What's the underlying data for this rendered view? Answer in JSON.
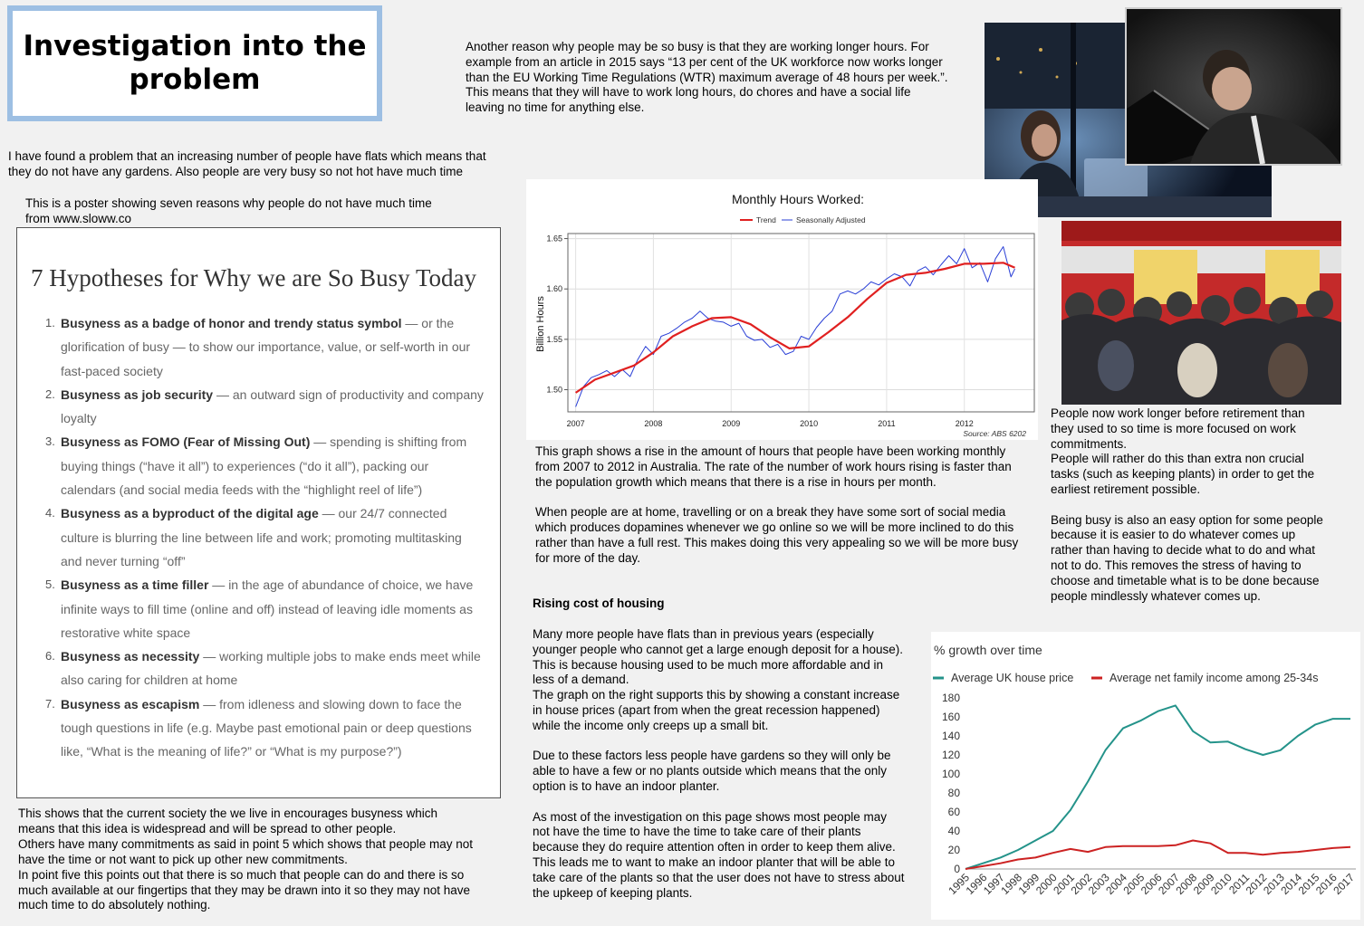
{
  "title": "Investigation into the problem",
  "intro_text": "I have found a problem that an increasing number of people have flats which means that\nthey do not have any gardens. Also people are very busy so not hot have much time",
  "poster_caption": "This is a poster showing seven reasons why people do not have much time\nfrom www.sloww.co",
  "poster": {
    "heading": "7 Hypotheses for Why we are So Busy Today",
    "items": [
      {
        "num": "1.",
        "bold": "Busyness as a badge of honor and trendy status symbol",
        "rest": " — or the glorification of busy — to show our importance, value, or self-worth in our fast-paced society"
      },
      {
        "num": "2.",
        "bold": "Busyness as job security",
        "rest": " — an outward sign of productivity and company loyalty"
      },
      {
        "num": "3.",
        "bold": "Busyness as FOMO (Fear of Missing Out)",
        "rest": " — spending is shifting from buying things (“have it all”) to experiences (“do it all”), packing our calendars (and social media feeds with the “highlight reel of life”)"
      },
      {
        "num": "4.",
        "bold": "Busyness as a byproduct of the digital age",
        "rest": " — our 24/7 connected culture is blurring the line between life and work; promoting multitasking and never turning “off”"
      },
      {
        "num": "5.",
        "bold": "Busyness as a time filler",
        "rest": " — in the age of abundance of choice, we have infinite ways to fill time (online and off) instead of leaving idle moments as restorative white space"
      },
      {
        "num": "6.",
        "bold": "Busyness as necessity",
        "rest": " — working multiple jobs to make ends meet while also caring for children at home"
      },
      {
        "num": "7.",
        "bold": "Busyness as escapism",
        "rest": " — from idleness and slowing down to face the tough questions in life (e.g. Maybe past emotional pain or deep questions like, “What is the meaning of life?” or “What is my purpose?”)"
      }
    ]
  },
  "society_text": "This shows that the current society the we live in encourages busyness which\nmeans that this idea is widespread and will be spread to other people.\nOthers have many commitments as said in point 5 which shows that people may not\nhave the time or not want to pick up other new commitments.\nIn point five this points out that there is so much that people can do and there is so\nmuch available at our fingertips that they may be drawn into it so they may not have\nmuch time to do absolutely nothing.",
  "hours_text": "Another reason why people may be so busy is that they are working longer hours. For\nexample from an article in 2015 says “13 per cent of the UK workforce now works longer\nthan the EU Working Time Regulations (WTR) maximum average of 48 hours per week.”.\nThis means that they will have to work long hours, do chores and have a social life\nleaving no time for anything else.",
  "graph_text": "This graph shows a rise in the amount of hours that people have been working monthly\nfrom 2007 to 2012 in Australia. The rate of the number of work hours rising is faster than\nthe population growth which means that there is a rise in hours per month.\n\nWhen people are at home, travelling or on a break they have some sort of social media\nwhich produces dopamines whenever we go online so we will be more inclined to do this\nrather than have a full rest. This makes doing this very appealing so we will be more busy\nfor more of the day.",
  "retirement_text": "People now work longer before retirement than\nthey used to so time is more focused on work\ncommitments.\nPeople will rather do this than extra non crucial\ntasks (such as keeping plants) in order to get the\nearliest retirement possible.\n\nBeing busy is also an easy option for some people\nbecause it is easier to do whatever comes up\nrather than having to decide what to do and what\nnot to do. This removes the stress of having to\nchoose and timetable what is to be done because\npeople mindlessly whatever comes up.",
  "housing_heading": "Rising cost of housing",
  "housing_text": "Many more people have flats than in previous years (especially\nyounger people who cannot get a large enough deposit for a house).\nThis is because housing used to be much more affordable and in\nless of a demand.\nThe graph on the right supports this by showing a constant increase\nin house prices (apart from when the great recession happened)\nwhile the income only creeps up a small bit.\n\nDue to these factors less people have gardens so they will only be\nable to have a few or no plants outside which means that the only\noption is to have an indoor planter.\n\nAs most of the investigation on this page shows most people may\nnot have the time to have the time to take care of their plants\nbecause they do require attention often in order to keep them alive.\nThis leads me to want to make an indoor planter that will be able to\ntake care of the plants so that the user does not have to stress about\nthe upkeep of keeping plants.",
  "colors": {
    "title_border": "#9dbfe3",
    "trend": "#e02020",
    "seasonal": "#2a3fd6",
    "house": "#24938a",
    "income": "#cc2222"
  },
  "chart_data": [
    {
      "type": "line",
      "title": "Monthly Hours Worked:",
      "ylabel": "Billion Hours",
      "source": "Source: ABS 6202",
      "ylim": [
        1.478,
        1.655
      ],
      "xlim": [
        2006.9,
        2012.9
      ],
      "yticks": [
        "1.50",
        "1.55",
        "1.60",
        "1.65"
      ],
      "xticks": [
        "2007",
        "2008",
        "2009",
        "2010",
        "2011",
        "2012"
      ],
      "grid": true,
      "legend_position": "top",
      "series": [
        {
          "name": "Trend",
          "x": [
            2007.0,
            2007.25,
            2007.5,
            2007.75,
            2008.0,
            2008.25,
            2008.5,
            2008.75,
            2009.0,
            2009.25,
            2009.5,
            2009.75,
            2010.0,
            2010.25,
            2010.5,
            2010.75,
            2011.0,
            2011.25,
            2011.5,
            2011.75,
            2012.0,
            2012.25,
            2012.5,
            2012.65
          ],
          "y": [
            1.497,
            1.51,
            1.517,
            1.524,
            1.537,
            1.553,
            1.563,
            1.571,
            1.572,
            1.565,
            1.552,
            1.541,
            1.543,
            1.557,
            1.572,
            1.59,
            1.606,
            1.614,
            1.616,
            1.62,
            1.625,
            1.625,
            1.626,
            1.621
          ]
        },
        {
          "name": "Seasonally Adjusted",
          "x": [
            2007.0,
            2007.1,
            2007.2,
            2007.3,
            2007.4,
            2007.5,
            2007.6,
            2007.7,
            2007.8,
            2007.9,
            2008.0,
            2008.1,
            2008.2,
            2008.3,
            2008.4,
            2008.5,
            2008.6,
            2008.7,
            2008.8,
            2008.9,
            2009.0,
            2009.1,
            2009.2,
            2009.3,
            2009.4,
            2009.5,
            2009.6,
            2009.7,
            2009.8,
            2009.9,
            2010.0,
            2010.1,
            2010.2,
            2010.3,
            2010.4,
            2010.5,
            2010.6,
            2010.7,
            2010.8,
            2010.9,
            2011.0,
            2011.1,
            2011.2,
            2011.3,
            2011.4,
            2011.5,
            2011.6,
            2011.7,
            2011.8,
            2011.9,
            2012.0,
            2012.1,
            2012.2,
            2012.3,
            2012.4,
            2012.5,
            2012.6,
            2012.65
          ],
          "y": [
            1.483,
            1.503,
            1.512,
            1.515,
            1.519,
            1.513,
            1.52,
            1.513,
            1.53,
            1.543,
            1.535,
            1.553,
            1.556,
            1.561,
            1.567,
            1.571,
            1.578,
            1.571,
            1.568,
            1.567,
            1.563,
            1.566,
            1.553,
            1.549,
            1.55,
            1.542,
            1.545,
            1.535,
            1.538,
            1.553,
            1.55,
            1.562,
            1.571,
            1.578,
            1.595,
            1.598,
            1.595,
            1.6,
            1.607,
            1.604,
            1.61,
            1.615,
            1.612,
            1.603,
            1.618,
            1.622,
            1.614,
            1.624,
            1.633,
            1.625,
            1.64,
            1.621,
            1.626,
            1.607,
            1.63,
            1.642,
            1.612,
            1.62
          ]
        }
      ]
    },
    {
      "type": "line",
      "title": "% growth over time",
      "categories": [
        "1995",
        "1996",
        "1997",
        "1998",
        "1999",
        "2000",
        "2001",
        "2002",
        "2003",
        "2004",
        "2005",
        "2006",
        "2007",
        "2008",
        "2009",
        "2010",
        "2011",
        "2012",
        "2013",
        "2014",
        "2015",
        "2016",
        "2017"
      ],
      "ylim": [
        0,
        180
      ],
      "yticks": [
        "0",
        "20",
        "40",
        "60",
        "80",
        "100",
        "120",
        "140",
        "160",
        "180"
      ],
      "legend_position": "top",
      "series": [
        {
          "name": "Average UK house price",
          "values": [
            0,
            6,
            12,
            20,
            30,
            40,
            62,
            92,
            125,
            148,
            156,
            166,
            172,
            145,
            133,
            134,
            126,
            120,
            125,
            140,
            152,
            158,
            158
          ]
        },
        {
          "name": "Average net family income among 25-34s",
          "values": [
            0,
            3,
            6,
            10,
            12,
            17,
            21,
            18,
            23,
            24,
            24,
            24,
            25,
            30,
            27,
            17,
            17,
            15,
            17,
            18,
            20,
            22,
            23
          ]
        }
      ]
    }
  ]
}
